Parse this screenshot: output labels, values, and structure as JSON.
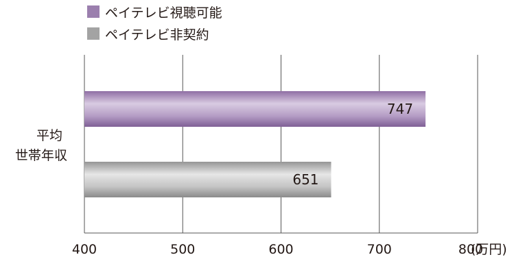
{
  "chart_data": {
    "type": "bar",
    "orientation": "horizontal",
    "category_label": [
      "平均",
      "世帯年収"
    ],
    "series": [
      {
        "name": "ペイテレビ視聴可能",
        "value": 747,
        "color": "#9b7fae"
      },
      {
        "name": "ペイテレビ非契約",
        "value": 651,
        "color": "#a3a3a3"
      }
    ],
    "xlim": [
      400,
      800
    ],
    "xticks": [
      400,
      500,
      600,
      700,
      800
    ],
    "xunit": "(万円)",
    "grid": true,
    "legend_position": "top-left"
  }
}
